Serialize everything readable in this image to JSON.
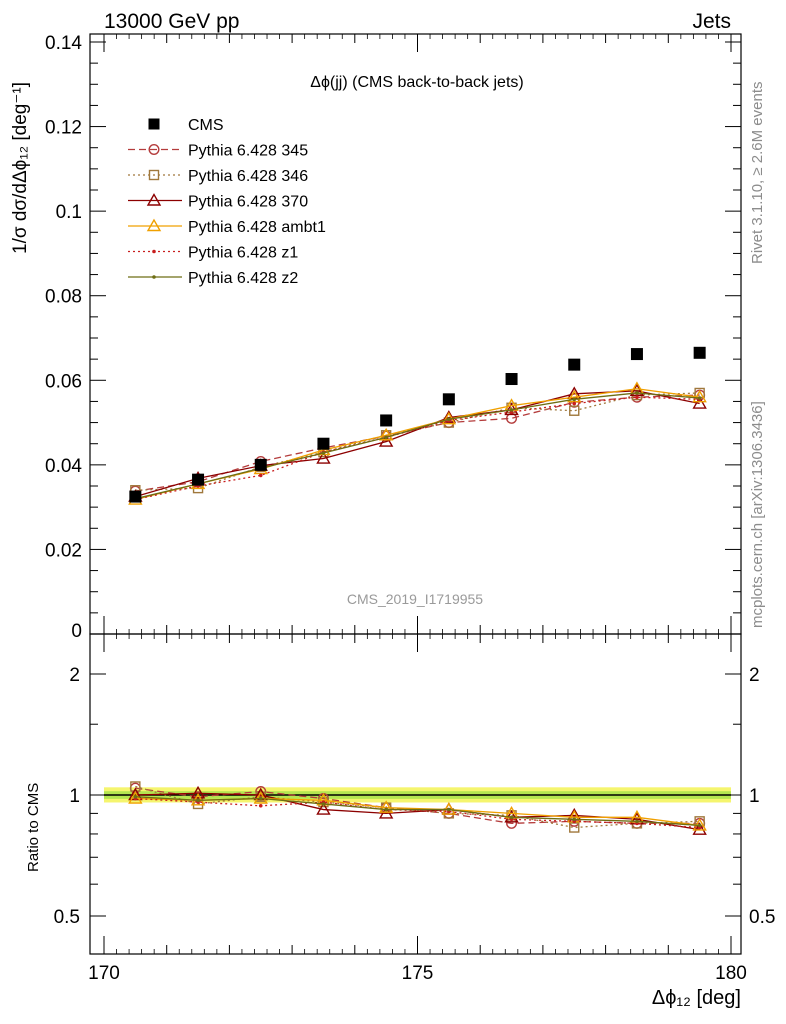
{
  "header": {
    "left": "13000 GeV pp",
    "right": "Jets"
  },
  "side_labels": {
    "rivet": "Rivet 3.1.10, ≥ 2.6M events",
    "mcplots": "mcplots.cern.ch [arXiv:1306.3436]"
  },
  "chart_data": [
    {
      "type": "scatter",
      "title": "Δϕ(jj) (CMS back-to-back jets)",
      "watermark": "CMS_2019_I1719955",
      "xlabel": "Δϕ₁₂ [deg]",
      "ylabel": "1/σ dσ/dΔϕ₁₂ [deg⁻¹]",
      "xlim": [
        170,
        180
      ],
      "ylim": [
        0,
        0.142
      ],
      "yticks": [
        "0",
        "0.02",
        "0.04",
        "0.06",
        "0.08",
        "0.1",
        "0.12",
        "0.14"
      ],
      "xticks": [
        "170",
        "175",
        "180"
      ],
      "legend_position": "top-left",
      "x": [
        170.5,
        171.5,
        172.5,
        173.5,
        174.5,
        175.5,
        176.5,
        177.5,
        178.5,
        179.5
      ],
      "series": [
        {
          "name": "CMS",
          "color": "#000000",
          "marker": "filled-square",
          "line": "none",
          "values": [
            0.0325,
            0.0365,
            0.04,
            0.045,
            0.0505,
            0.0555,
            0.0603,
            0.0637,
            0.0662,
            0.0665
          ]
        },
        {
          "name": "Pythia 6.428 345",
          "color": "#b43c3c",
          "marker": "open-circle",
          "line": "dashed",
          "values": [
            0.0338,
            0.036,
            0.0408,
            0.044,
            0.0468,
            0.05,
            0.051,
            0.0548,
            0.056,
            0.0565
          ]
        },
        {
          "name": "Pythia 6.428 346",
          "color": "#a0783c",
          "marker": "open-square",
          "line": "dotted",
          "values": [
            0.034,
            0.0345,
            0.0395,
            0.043,
            0.047,
            0.05,
            0.0535,
            0.0528,
            0.0565,
            0.057
          ]
        },
        {
          "name": "Pythia 6.428 370",
          "color": "#8c0000",
          "marker": "open-triangle",
          "line": "solid",
          "values": [
            0.0325,
            0.0368,
            0.0398,
            0.0415,
            0.0455,
            0.0512,
            0.053,
            0.0568,
            0.0575,
            0.0545
          ]
        },
        {
          "name": "Pythia 6.428 ambt1",
          "color": "#f0a000",
          "marker": "open-triangle",
          "line": "solid",
          "values": [
            0.0318,
            0.0355,
            0.039,
            0.0435,
            0.047,
            0.0508,
            0.054,
            0.056,
            0.058,
            0.056
          ]
        },
        {
          "name": "Pythia 6.428 z1",
          "color": "#c81e1e",
          "marker": "small-dot",
          "line": "dotted",
          "values": [
            0.0318,
            0.035,
            0.0375,
            0.043,
            0.0465,
            0.0505,
            0.0525,
            0.0545,
            0.056,
            0.0555
          ]
        },
        {
          "name": "Pythia 6.428 z2",
          "color": "#6e6e14",
          "marker": "small-dot",
          "line": "solid",
          "values": [
            0.032,
            0.0355,
            0.0392,
            0.0428,
            0.0465,
            0.0508,
            0.053,
            0.0555,
            0.057,
            0.0558
          ]
        }
      ]
    },
    {
      "type": "line",
      "ylabel": "Ratio to CMS",
      "xlim": [
        170,
        180
      ],
      "ylim": [
        0.41,
        2.38
      ],
      "ylog": true,
      "yticks": [
        "0.5",
        "1",
        "2"
      ],
      "band_colors": [
        "#f5f56e",
        "#b4e650"
      ],
      "reference_color": "#000000",
      "x": [
        170.5,
        171.5,
        172.5,
        173.5,
        174.5,
        175.5,
        176.5,
        177.5,
        178.5,
        179.5
      ],
      "series": [
        {
          "name": "Pythia 6.428 345",
          "values": [
            1.04,
            0.99,
            1.02,
            0.98,
            0.93,
            0.9,
            0.85,
            0.86,
            0.85,
            0.85
          ]
        },
        {
          "name": "Pythia 6.428 346",
          "values": [
            1.05,
            0.95,
            0.99,
            0.96,
            0.93,
            0.9,
            0.89,
            0.83,
            0.85,
            0.86
          ]
        },
        {
          "name": "Pythia 6.428 370",
          "values": [
            1.0,
            1.01,
            1.0,
            0.92,
            0.9,
            0.92,
            0.88,
            0.89,
            0.87,
            0.82
          ]
        },
        {
          "name": "Pythia 6.428 ambt1",
          "values": [
            0.98,
            0.97,
            0.98,
            0.97,
            0.93,
            0.92,
            0.9,
            0.88,
            0.88,
            0.84
          ]
        },
        {
          "name": "Pythia 6.428 z1",
          "values": [
            0.98,
            0.96,
            0.94,
            0.96,
            0.92,
            0.91,
            0.87,
            0.86,
            0.85,
            0.83
          ]
        },
        {
          "name": "Pythia 6.428 z2",
          "values": [
            0.99,
            0.97,
            0.98,
            0.95,
            0.92,
            0.92,
            0.88,
            0.87,
            0.86,
            0.84
          ]
        }
      ]
    }
  ]
}
